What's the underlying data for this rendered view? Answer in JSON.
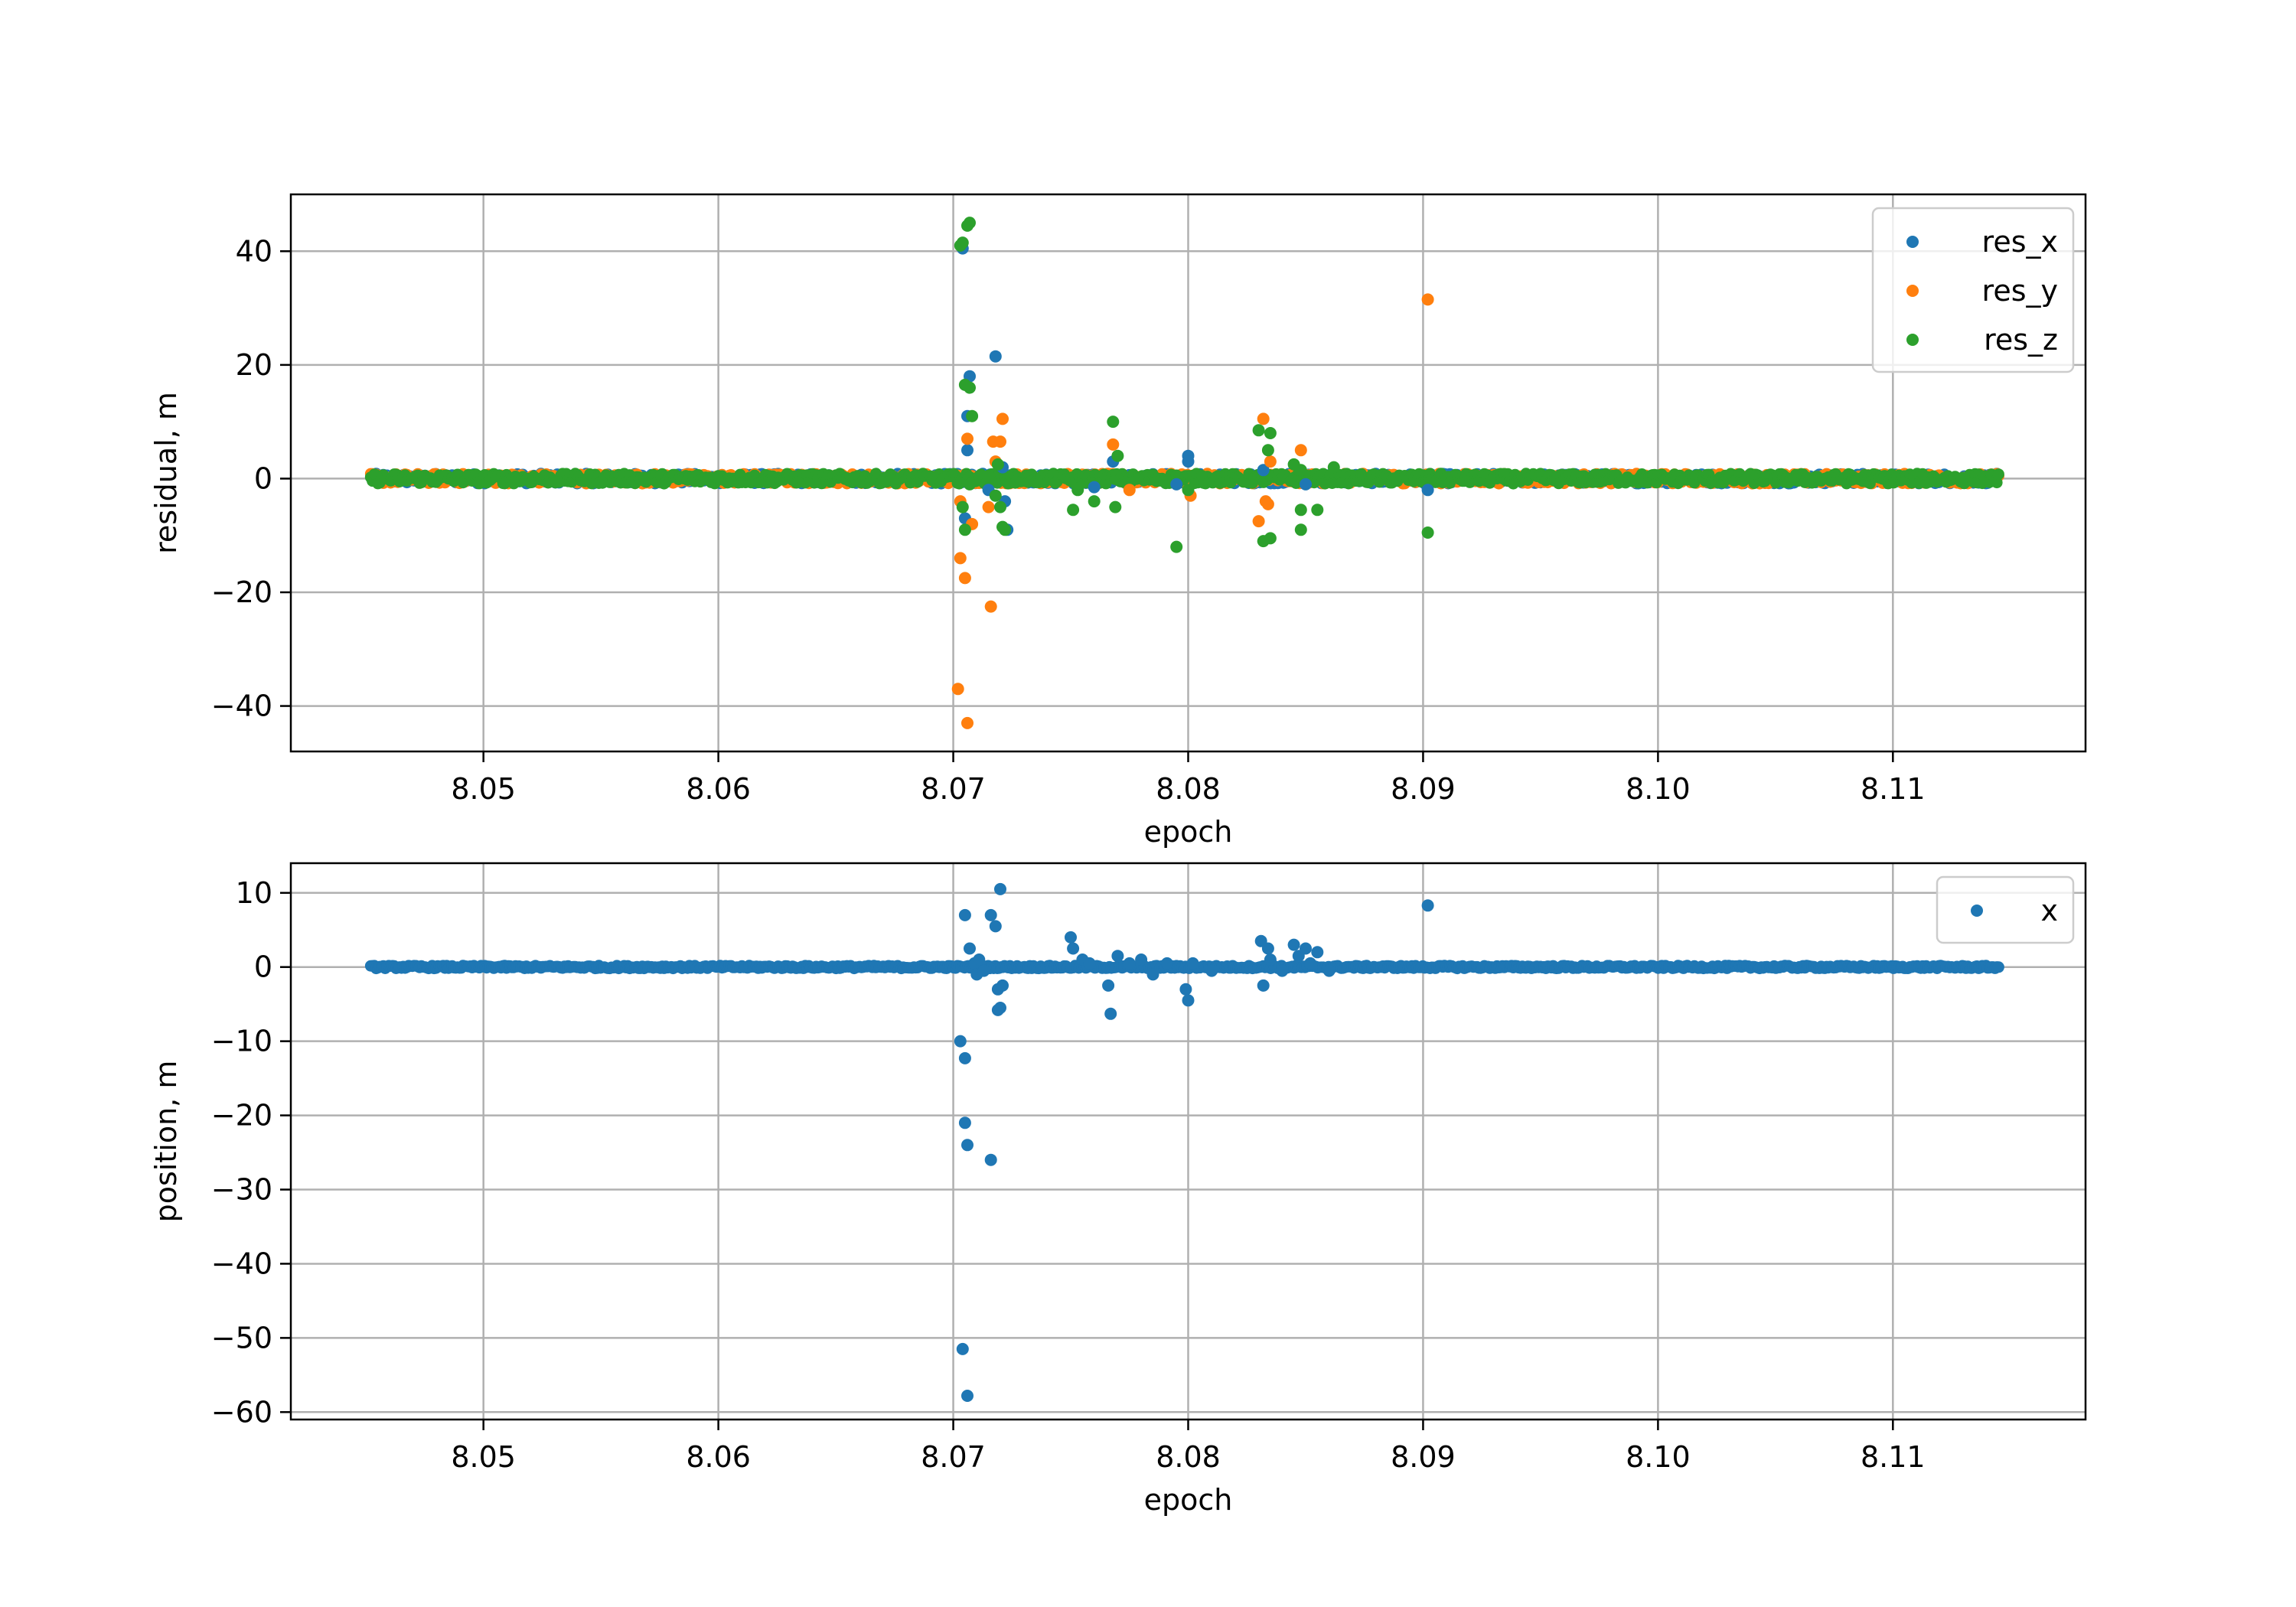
{
  "chart_data": [
    {
      "type": "scatter",
      "title": "",
      "xlabel": "epoch",
      "ylabel": "residual, m",
      "xlim": [
        8.0418,
        8.1182
      ],
      "ylim": [
        -48,
        50
      ],
      "xticks": [
        8.05,
        8.06,
        8.07,
        8.08,
        8.09,
        8.1,
        8.11
      ],
      "xtick_labels": [
        "8.05",
        "8.06",
        "8.07",
        "8.08",
        "8.09",
        "8.10",
        "8.11"
      ],
      "yticks": [
        -40,
        -20,
        0,
        20,
        40
      ],
      "ytick_labels": [
        "−40",
        "−20",
        "0",
        "20",
        "40"
      ],
      "grid": true,
      "legend": "top-right",
      "baseline": {
        "x_start": 8.0452,
        "x_end": 8.1145,
        "band": 0.9
      },
      "series": [
        {
          "name": "res_x",
          "color": "#1f77b4",
          "points": [
            [
              8.0704,
              40.5
            ],
            [
              8.0707,
              18.0
            ],
            [
              8.0706,
              11.0
            ],
            [
              8.0705,
              -7.0
            ],
            [
              8.0706,
              5.0
            ],
            [
              8.0718,
              21.5
            ],
            [
              8.0721,
              2.0
            ],
            [
              8.0723,
              -9.0
            ],
            [
              8.0722,
              -4.0
            ],
            [
              8.0715,
              -2.0
            ],
            [
              8.08,
              4.0
            ],
            [
              8.08,
              3.0
            ],
            [
              8.0768,
              3.0
            ],
            [
              8.0902,
              -2.0
            ],
            [
              8.0832,
              1.5
            ],
            [
              8.0795,
              -1.0
            ],
            [
              8.076,
              -1.5
            ],
            [
              8.085,
              -1.0
            ]
          ]
        },
        {
          "name": "res_y",
          "color": "#ff7f0e",
          "points": [
            [
              8.0702,
              -37.0
            ],
            [
              8.0706,
              -43.0
            ],
            [
              8.0703,
              -14.0
            ],
            [
              8.0705,
              -17.5
            ],
            [
              8.0703,
              -4.0
            ],
            [
              8.0708,
              -8.0
            ],
            [
              8.0716,
              -22.5
            ],
            [
              8.0715,
              -5.0
            ],
            [
              8.0706,
              7.0
            ],
            [
              8.0717,
              6.5
            ],
            [
              8.0721,
              10.5
            ],
            [
              8.0718,
              3.0
            ],
            [
              8.072,
              6.5
            ],
            [
              8.0768,
              6.0
            ],
            [
              8.0801,
              -3.0
            ],
            [
              8.0832,
              10.5
            ],
            [
              8.083,
              -7.5
            ],
            [
              8.0833,
              -4.0
            ],
            [
              8.0834,
              -4.5
            ],
            [
              8.0835,
              3.0
            ],
            [
              8.0848,
              5.0
            ],
            [
              8.0902,
              31.5
            ],
            [
              8.0775,
              -2.0
            ]
          ]
        },
        {
          "name": "res_z",
          "color": "#2ca02c",
          "points": [
            [
              8.0707,
              45.0
            ],
            [
              8.0706,
              44.5
            ],
            [
              8.0704,
              41.5
            ],
            [
              8.0703,
              41.0
            ],
            [
              8.0705,
              16.5
            ],
            [
              8.0707,
              16.0
            ],
            [
              8.0708,
              11.0
            ],
            [
              8.0705,
              -9.0
            ],
            [
              8.0704,
              -5.0
            ],
            [
              8.0707,
              -1.0
            ],
            [
              8.0715,
              0.5
            ],
            [
              8.0719,
              2.5
            ],
            [
              8.072,
              -5.0
            ],
            [
              8.0721,
              -8.5
            ],
            [
              8.0722,
              -9.0
            ],
            [
              8.0718,
              -3.0
            ],
            [
              8.0751,
              -5.5
            ],
            [
              8.0753,
              -2.0
            ],
            [
              8.076,
              -4.0
            ],
            [
              8.0768,
              10.0
            ],
            [
              8.0769,
              -5.0
            ],
            [
              8.077,
              4.0
            ],
            [
              8.0795,
              -12.0
            ],
            [
              8.08,
              -2.0
            ],
            [
              8.083,
              8.5
            ],
            [
              8.0834,
              5.0
            ],
            [
              8.0835,
              8.0
            ],
            [
              8.0832,
              -11.0
            ],
            [
              8.0835,
              -10.5
            ],
            [
              8.0848,
              -9.0
            ],
            [
              8.0848,
              -5.5
            ],
            [
              8.0855,
              -5.5
            ],
            [
              8.0848,
              1.5
            ],
            [
              8.0902,
              -9.5
            ],
            [
              8.0862,
              2.0
            ],
            [
              8.0845,
              2.5
            ]
          ]
        }
      ]
    },
    {
      "type": "scatter",
      "title": "",
      "xlabel": "epoch",
      "ylabel": "position, m",
      "xlim": [
        8.0418,
        8.1182
      ],
      "ylim": [
        -61,
        14
      ],
      "xticks": [
        8.05,
        8.06,
        8.07,
        8.08,
        8.09,
        8.1,
        8.11
      ],
      "xtick_labels": [
        "8.05",
        "8.06",
        "8.07",
        "8.08",
        "8.09",
        "8.10",
        "8.11"
      ],
      "yticks": [
        -60,
        -50,
        -40,
        -30,
        -20,
        -10,
        0,
        10
      ],
      "ytick_labels": [
        "−60",
        "−50",
        "−40",
        "−30",
        "−20",
        "−10",
        "0",
        "10"
      ],
      "grid": true,
      "legend": "top-right",
      "baseline": {
        "x_start": 8.0452,
        "x_end": 8.1145,
        "band": 0.2
      },
      "series": [
        {
          "name": "x",
          "color": "#1f77b4",
          "points": [
            [
              8.0704,
              -51.5
            ],
            [
              8.0706,
              -57.8
            ],
            [
              8.0705,
              -21.0
            ],
            [
              8.0706,
              -24.0
            ],
            [
              8.0716,
              -26.0
            ],
            [
              8.0703,
              -10.0
            ],
            [
              8.0705,
              -12.3
            ],
            [
              8.0705,
              7.0
            ],
            [
              8.0707,
              2.5
            ],
            [
              8.0709,
              0.5
            ],
            [
              8.071,
              -1.0
            ],
            [
              8.0716,
              7.0
            ],
            [
              8.0718,
              5.5
            ],
            [
              8.072,
              10.5
            ],
            [
              8.0719,
              -3.0
            ],
            [
              8.0721,
              -2.5
            ],
            [
              8.072,
              -5.5
            ],
            [
              8.0719,
              -5.8
            ],
            [
              8.0713,
              -0.5
            ],
            [
              8.0711,
              1.0
            ],
            [
              8.075,
              4.0
            ],
            [
              8.0751,
              2.5
            ],
            [
              8.0755,
              1.0
            ],
            [
              8.0758,
              0.5
            ],
            [
              8.0766,
              -2.5
            ],
            [
              8.0767,
              -6.3
            ],
            [
              8.077,
              1.5
            ],
            [
              8.0775,
              0.5
            ],
            [
              8.078,
              1.0
            ],
            [
              8.0785,
              -1.0
            ],
            [
              8.0791,
              0.5
            ],
            [
              8.0799,
              -3.0
            ],
            [
              8.08,
              -4.5
            ],
            [
              8.0802,
              0.5
            ],
            [
              8.081,
              -0.5
            ],
            [
              8.0831,
              3.5
            ],
            [
              8.0834,
              2.5
            ],
            [
              8.0832,
              -2.5
            ],
            [
              8.0835,
              1.0
            ],
            [
              8.084,
              -0.5
            ],
            [
              8.0845,
              3.0
            ],
            [
              8.0847,
              1.5
            ],
            [
              8.085,
              2.5
            ],
            [
              8.0855,
              2.0
            ],
            [
              8.0852,
              0.5
            ],
            [
              8.086,
              -0.5
            ],
            [
              8.0902,
              8.3
            ]
          ]
        }
      ]
    }
  ]
}
